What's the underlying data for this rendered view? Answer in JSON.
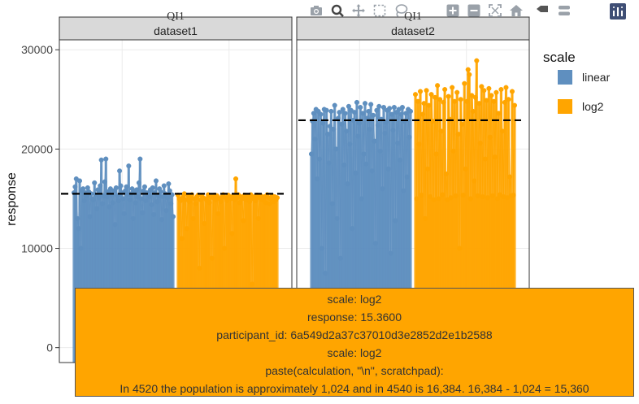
{
  "modebar": {
    "buttons": [
      "camera-icon",
      "zoom-icon",
      "pan-icon",
      "box-select-icon",
      "lasso-icon",
      "zoom-in-icon",
      "zoom-out-icon",
      "autoscale-icon",
      "reset-axes-icon",
      "spike-lines-icon",
      "compare-hover-icon",
      "closest-hover-icon"
    ],
    "logo": "plotly-logo-icon"
  },
  "legend": {
    "title": "scale",
    "items": [
      {
        "label": "linear",
        "color": "#5F8FBF"
      },
      {
        "label": "log2",
        "color": "#FFA500"
      }
    ]
  },
  "tooltip": {
    "line1": "scale: log2",
    "line2": "response:    15.3600",
    "line3": "participant_id: 6a549d2a37c37010d3e2852d2e1b2588",
    "line4": "scale: log2",
    "line5": "paste(calculation, \"\\n\", scratchpad):",
    "line6": "In 4520 the population is approximately 1,024 and in 4540 is 16,384. 16,384 - 1,024 = 15,360"
  },
  "chart_data": {
    "type": "scatter",
    "ylabel": "response",
    "xlabel": "",
    "ylim": [
      -1500,
      31000
    ],
    "yticks": [
      0,
      10000,
      20000,
      30000
    ],
    "ytick_labels": [
      "0",
      "10000",
      "20000",
      "30000"
    ],
    "grid": true,
    "legend_placement": "right",
    "colors": {
      "linear": "#5F8FBF",
      "log2": "#FFA500",
      "ref_line": "#000000",
      "strip": "#D9D9D9",
      "panel_border": "#333333"
    },
    "facet_top_label": "QI1",
    "panels": [
      {
        "strip_top": "QI1",
        "strip": "dataset1",
        "reference_value": 15500,
        "series": [
          {
            "name": "linear",
            "values": [
              15600,
              16200,
              17000,
              13000,
              12000,
              16800,
              10000,
              15800,
              16000,
              14800,
              15600,
              15300,
              16100,
              15700,
              13200,
              15500,
              15000,
              14900,
              16600,
              15400,
              14000,
              15900,
              15100,
              16300,
              18900,
              14500,
              15300,
              16700,
              19000,
              15200,
              15700,
              14200,
              16000,
              15400,
              14600,
              15800,
              12400,
              16100,
              15300,
              14800,
              17800,
              16300,
              15600,
              15000,
              13500,
              15800,
              16200,
              15400,
              18300,
              14900,
              15500,
              16000,
              13000,
              15700,
              14600,
              15900,
              15200,
              16600,
              19000,
              15000,
              13600,
              15800,
              16200,
              14800,
              15600,
              15400,
              15200,
              15900,
              14400,
              16100,
              13400,
              15600,
              16800,
              14700,
              15300,
              16000,
              15700,
              12900,
              15200,
              16300,
              15500,
              13800,
              15100,
              16500,
              15800,
              14500,
              15400,
              13200
            ]
          },
          {
            "name": "log2",
            "values": [
              15360,
              15000,
              14800,
              11000,
              15200,
              15500,
              14900,
              12000,
              15300,
              14700,
              15100,
              15400,
              13000,
              15000,
              14500,
              15200,
              15360,
              8000,
              14900,
              15300,
              15100,
              12500,
              15000,
              14800,
              15400,
              14600,
              15200,
              9000,
              15100,
              15360,
              14900,
              15300,
              13500,
              15000,
              14700,
              15200,
              15400,
              10000,
              15100,
              14800,
              15360,
              15200,
              15000,
              11500,
              15300,
              14900,
              17000,
              15100,
              15400,
              14600,
              15200,
              15000,
              12800,
              15360,
              14900,
              15300,
              15100,
              14700,
              15400,
              6400,
              15000,
              15200,
              14800,
              15360,
              13000,
              15100,
              15300,
              14900,
              15000,
              15200,
              14600,
              15400,
              15100,
              14500,
              15000,
              15300,
              14700,
              15200,
              14900,
              15100
            ]
          }
        ]
      },
      {
        "strip_top": "QI1",
        "strip": "dataset2",
        "reference_value": 22900,
        "series": [
          {
            "name": "linear",
            "values": [
              19500,
              22800,
              23600,
              21000,
              24000,
              17000,
              23800,
              19000,
              23500,
              10000,
              22600,
              24000,
              7500,
              23900,
              21500,
              18600,
              22300,
              23800,
              14500,
              22000,
              24400,
              20000,
              13000,
              23100,
              23700,
              9000,
              22500,
              24000,
              18400,
              23600,
              21800,
              16500,
              24300,
              20500,
              23900,
              12000,
              22900,
              23700,
              17600,
              24700,
              21300,
              22600,
              24200,
              15000,
              23600,
              19500,
              24600,
              18500,
              23100,
              23800,
              22000,
              24500,
              17800,
              23400,
              20800,
              10500,
              23900,
              22400,
              24300,
              19800,
              23000,
              16000,
              24200,
              21600,
              22700,
              23900,
              18000,
              24100,
              9500,
              23500,
              21900,
              24200,
              12800,
              23700,
              20600,
              24000,
              18900,
              23500,
              24200,
              15800,
              22800,
              23600,
              17200,
              24000,
              21200,
              23800
            ]
          },
          {
            "name": "log2",
            "values": [
              25500,
              15000,
              24800,
              20500,
              25800,
              15360,
              23500,
              24600,
              13000,
              25900,
              18000,
              24400,
              15200,
              25500,
              22800,
              14900,
              25200,
              19500,
              26400,
              15000,
              25000,
              21800,
              15400,
              24700,
              26000,
              17500,
              14900,
              25300,
              23000,
              15100,
              26200,
              19800,
              24800,
              15300,
              25700,
              21500,
              10000,
              25000,
              22500,
              15360,
              26600,
              18000,
              24800,
              28000,
              27500,
              15000,
              25400,
              23800,
              16800,
              25200,
              28900,
              15300,
              24600,
              20600,
              26300,
              15200,
              25900,
              19000,
              24900,
              15100,
              26100,
              21200,
              25400,
              15300,
              24800,
              19200,
              25700,
              15000,
              23600,
              15400,
              26000,
              21800,
              15200,
              24700,
              26200,
              15100,
              25000,
              17200,
              15300,
              25800,
              15360,
              24400
            ]
          }
        ]
      }
    ]
  }
}
